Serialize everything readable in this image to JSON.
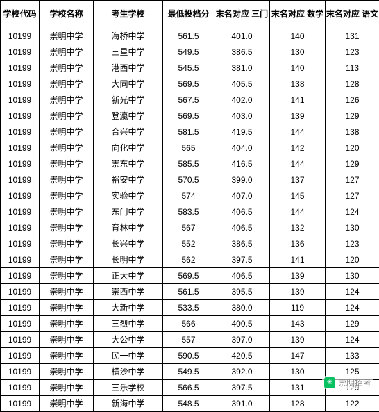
{
  "table": {
    "columns": [
      {
        "key": "code",
        "label": "学校代码",
        "class": "col-code"
      },
      {
        "key": "school",
        "label": "学校名称",
        "class": "col-school"
      },
      {
        "key": "exam",
        "label": "考生学校",
        "class": "col-exam"
      },
      {
        "key": "score",
        "label": "最低投档分",
        "class": "col-score"
      },
      {
        "key": "t3",
        "label": "末名对应\n三门",
        "class": "col-t3"
      },
      {
        "key": "math",
        "label": "末名对应\n数学",
        "class": "col-math"
      },
      {
        "key": "chn",
        "label": "末名对应\n语文",
        "class": "col-chn"
      }
    ],
    "rows": [
      [
        "10199",
        "崇明中学",
        "海桥中学",
        "561.5",
        "401.0",
        "140",
        "131"
      ],
      [
        "10199",
        "崇明中学",
        "三星中学",
        "549.5",
        "386.5",
        "130",
        "123"
      ],
      [
        "10199",
        "崇明中学",
        "港西中学",
        "545.5",
        "381.0",
        "140",
        "113"
      ],
      [
        "10199",
        "崇明中学",
        "大同中学",
        "569.5",
        "405.5",
        "138",
        "128"
      ],
      [
        "10199",
        "崇明中学",
        "新光中学",
        "567.5",
        "402.0",
        "141",
        "126"
      ],
      [
        "10199",
        "崇明中学",
        "登瀛中学",
        "569.5",
        "403.0",
        "139",
        "129"
      ],
      [
        "10199",
        "崇明中学",
        "合兴中学",
        "581.5",
        "419.5",
        "144",
        "138"
      ],
      [
        "10199",
        "崇明中学",
        "向化中学",
        "565",
        "404.0",
        "142",
        "120"
      ],
      [
        "10199",
        "崇明中学",
        "崇东中学",
        "585.5",
        "416.5",
        "144",
        "129"
      ],
      [
        "10199",
        "崇明中学",
        "裕安中学",
        "570.5",
        "399.0",
        "137",
        "127"
      ],
      [
        "10199",
        "崇明中学",
        "实验中学",
        "574",
        "407.0",
        "145",
        "127"
      ],
      [
        "10199",
        "崇明中学",
        "东门中学",
        "583.5",
        "406.5",
        "144",
        "124"
      ],
      [
        "10199",
        "崇明中学",
        "育林中学",
        "567",
        "406.5",
        "132",
        "130"
      ],
      [
        "10199",
        "崇明中学",
        "长兴中学",
        "552",
        "386.5",
        "136",
        "123"
      ],
      [
        "10199",
        "崇明中学",
        "长明中学",
        "562",
        "397.5",
        "141",
        "120"
      ],
      [
        "10199",
        "崇明中学",
        "正大中学",
        "569.5",
        "406.5",
        "139",
        "130"
      ],
      [
        "10199",
        "崇明中学",
        "崇西中学",
        "561.5",
        "395.5",
        "139",
        "124"
      ],
      [
        "10199",
        "崇明中学",
        "大新中学",
        "533.5",
        "380.0",
        "119",
        "124"
      ],
      [
        "10199",
        "崇明中学",
        "三烈中学",
        "566",
        "400.5",
        "143",
        "129"
      ],
      [
        "10199",
        "崇明中学",
        "大公中学",
        "557",
        "397.0",
        "139",
        "124"
      ],
      [
        "10199",
        "崇明中学",
        "民一中学",
        "590.5",
        "420.5",
        "147",
        "133"
      ],
      [
        "10199",
        "崇明中学",
        "横沙中学",
        "549.5",
        "392.0",
        "130",
        "125"
      ],
      [
        "10199",
        "崇明中学",
        "三乐学校",
        "566.5",
        "397.5",
        "131",
        "129"
      ],
      [
        "10199",
        "崇明中学",
        "新海中学",
        "548.5",
        "391.0",
        "128",
        "122"
      ]
    ]
  },
  "watermark": {
    "text": "崇明招考"
  }
}
